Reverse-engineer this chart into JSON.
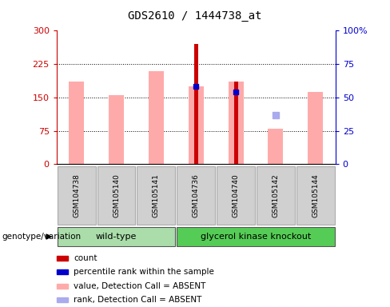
{
  "title": "GDS2610 / 1444738_at",
  "samples": [
    "GSM104738",
    "GSM105140",
    "GSM105141",
    "GSM104736",
    "GSM104740",
    "GSM105142",
    "GSM105144"
  ],
  "ylim_left": [
    0,
    300
  ],
  "ylim_right": [
    0,
    100
  ],
  "yticks_left": [
    0,
    75,
    150,
    225,
    300
  ],
  "yticks_right": [
    0,
    25,
    50,
    75,
    100
  ],
  "ytick_labels_left": [
    "0",
    "75",
    "150",
    "225",
    "300"
  ],
  "ytick_labels_right": [
    "0",
    "25",
    "50",
    "75",
    "100%"
  ],
  "left_axis_color": "#cc0000",
  "right_axis_color": "#0000cc",
  "count_values": [
    null,
    null,
    null,
    270,
    185,
    null,
    null
  ],
  "count_color": "#cc0000",
  "pink_bar_values": [
    185,
    155,
    210,
    175,
    185,
    80,
    163
  ],
  "pink_bar_color": "#ffaaaa",
  "blue_square_values": [
    null,
    null,
    null,
    175,
    163,
    null,
    null
  ],
  "blue_square_color": "#0000cc",
  "blue_rank_values": [
    null,
    null,
    null,
    null,
    null,
    110,
    null
  ],
  "blue_rank_color": "#aaaaee",
  "legend_colors": [
    "#cc0000",
    "#0000cc",
    "#ffaaaa",
    "#aaaaee"
  ],
  "legend_labels": [
    "count",
    "percentile rank within the sample",
    "value, Detection Call = ABSENT",
    "rank, Detection Call = ABSENT"
  ],
  "background_color": "#ffffff",
  "grid_color": "#000000",
  "label_fontsize": 8,
  "title_fontsize": 10,
  "wt_color": "#aaddaa",
  "gk_color": "#55cc55",
  "sample_box_color": "#d0d0d0",
  "sample_box_edge": "#aaaaaa"
}
